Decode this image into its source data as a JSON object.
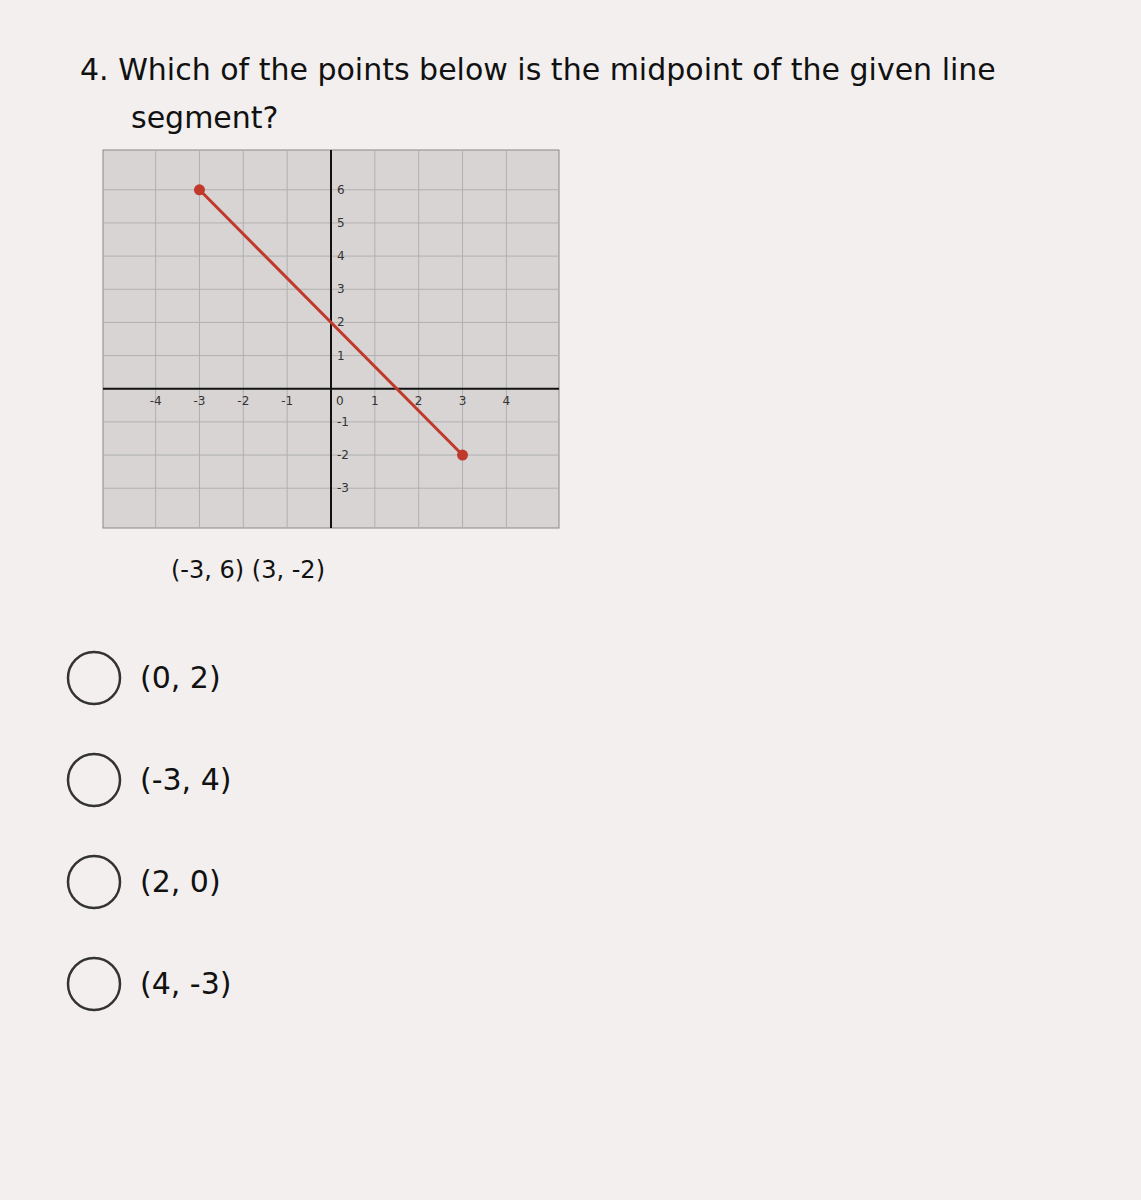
{
  "chart_data": {
    "type": "line",
    "title": "4. Which of the points below is the midpoint of the given line\nsegment?",
    "x": [
      -3,
      3
    ],
    "series": [
      {
        "color": "#c0392b",
        "marker": "circle",
        "values": [
          6,
          -2
        ]
      }
    ],
    "xlim": [
      -5.2,
      5.2
    ],
    "ylim": [
      -4.2,
      7.2
    ],
    "xticks": [
      -4,
      -3,
      -2,
      -1,
      0,
      1,
      2,
      3,
      4
    ],
    "yticks": [
      -3,
      -2,
      -1,
      1,
      2,
      3,
      4,
      5,
      6
    ],
    "grid": true,
    "annotations": [
      "(-3, 6) (3, -2)",
      "(0, 2)",
      "(-3, 4)",
      "(2, 0)",
      "(4, -3)"
    ]
  }
}
